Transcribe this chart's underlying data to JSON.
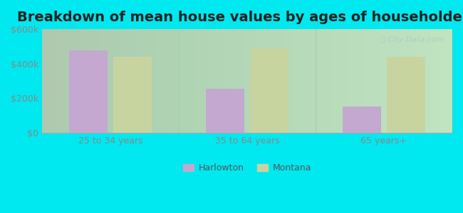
{
  "title": "Breakdown of mean house values by ages of householders",
  "categories": [
    "25 to 34 years",
    "35 to 64 years",
    "65 years+"
  ],
  "harlowton_values": [
    475000,
    255000,
    150000
  ],
  "montana_values": [
    440000,
    490000,
    440000
  ],
  "ylim": [
    0,
    600000
  ],
  "yticks": [
    0,
    200000,
    400000,
    600000
  ],
  "ytick_labels": [
    "$0",
    "$200k",
    "$400k",
    "$600k"
  ],
  "bar_color_harlowton": "#c4a8d0",
  "bar_color_montana": "#c8d4a0",
  "background_outer": "#00e8f0",
  "background_inner_left": "#d4edcc",
  "background_inner_right": "#eef7f0",
  "title_fontsize": 14,
  "legend_label_harlowton": "Harlowton",
  "legend_label_montana": "Montana",
  "bar_width": 0.28,
  "tick_color": "#888888",
  "separator_color": "#aaccaa",
  "watermark_color": "#b0c8c8"
}
